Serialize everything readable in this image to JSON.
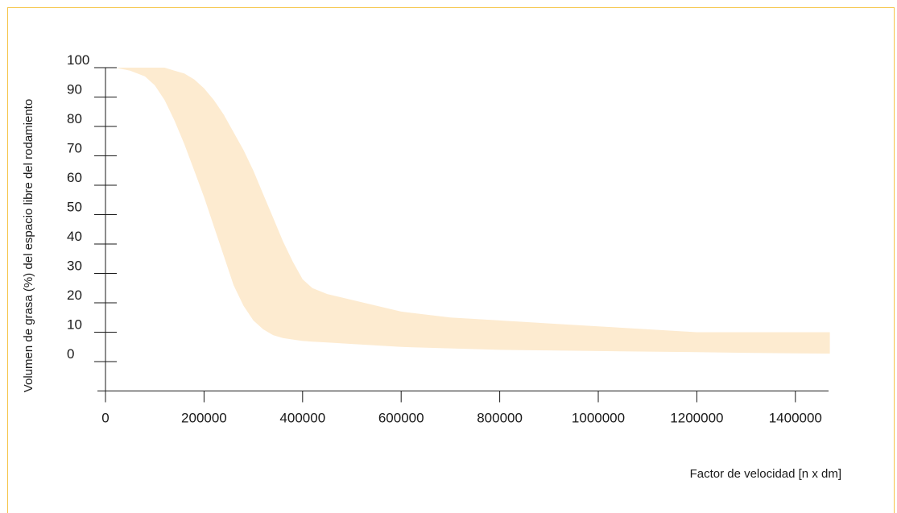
{
  "chart_data": {
    "type": "area",
    "title": "",
    "xlabel": "Factor de velocidad [n x dm]",
    "ylabel": "Volumen de grasa (%) del espacio libre del rodamiento",
    "xlim": [
      0,
      1475000
    ],
    "ylim": [
      -10,
      100
    ],
    "x_ticks": [
      0,
      200000,
      400000,
      600000,
      800000,
      1000000,
      1200000,
      1400000
    ],
    "x_tick_labels": [
      "0",
      "200000",
      "400000",
      "600000",
      "800000",
      "1000000",
      "1200000",
      "1400000"
    ],
    "y_ticks": [
      0,
      10,
      20,
      30,
      40,
      50,
      60,
      70,
      80,
      90,
      100
    ],
    "y_tick_labels": [
      "0",
      "10",
      "20",
      "30",
      "40",
      "50",
      "60",
      "70",
      "80",
      "90",
      "100"
    ],
    "grid": false,
    "legend": "none",
    "band_color": "#fdebd0",
    "axis_color": "#1a1a1a",
    "frame_color": "#f5c54a",
    "series": [
      {
        "x": [
          20000,
          50000,
          80000,
          100000,
          120000,
          140000,
          160000,
          180000,
          200000,
          220000,
          240000,
          260000,
          280000,
          300000,
          320000,
          340000,
          360000,
          380000,
          400000,
          420000,
          450000,
          500000,
          600000,
          700000,
          800000,
          900000,
          1000000,
          1100000,
          1200000,
          1300000,
          1400000,
          1470000
        ],
        "upper": [
          100,
          100,
          100,
          100,
          100,
          99,
          98,
          96,
          93,
          89,
          84,
          78,
          72,
          65,
          57,
          49,
          41,
          34,
          28,
          25,
          23,
          21,
          17,
          15,
          14,
          13,
          12,
          11,
          10,
          10,
          10,
          10
        ],
        "lower": [
          100,
          99,
          97,
          94,
          89,
          82,
          74,
          65,
          56,
          46,
          36,
          26,
          19,
          14,
          11,
          9,
          8,
          7.5,
          7,
          6.8,
          6.5,
          6,
          5,
          4.5,
          4,
          3.8,
          3.6,
          3.4,
          3.2,
          3,
          2.8,
          2.7
        ]
      }
    ]
  }
}
